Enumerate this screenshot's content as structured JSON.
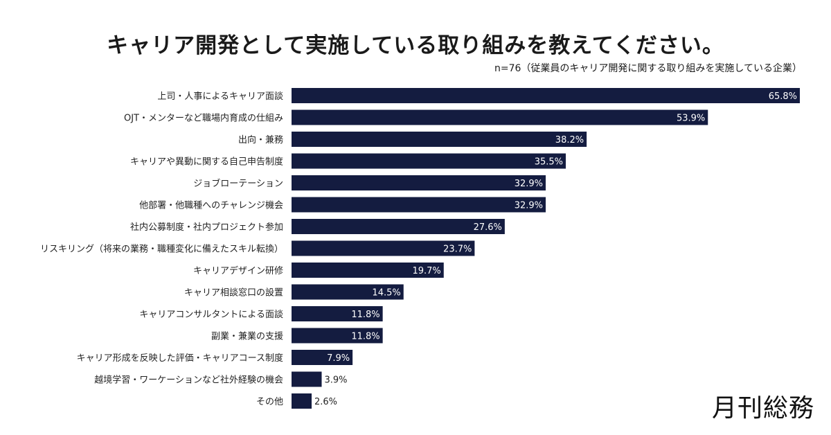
{
  "chart_data": {
    "type": "bar",
    "orientation": "horizontal",
    "title": "キャリア開発として実施している取り組みを教えてください。",
    "subtitle": "n=76（従業員のキャリア開発に関する取り組みを実施している企業）",
    "categories": [
      "上司・人事によるキャリア面談",
      "OJT・メンターなど職場内育成の仕組み",
      "出向・兼務",
      "キャリアや異動に関する自己申告制度",
      "ジョブローテーション",
      "他部署・他職種へのチャレンジ機会",
      "社内公募制度・社内プロジェクト参加",
      "リスキリング（将来の業務・職種変化に備えたスキル転換）",
      "キャリアデザイン研修",
      "キャリア相談窓口の設置",
      "キャリアコンサルタントによる面談",
      "副業・兼業の支援",
      "キャリア形成を反映した評価・キャリアコース制度",
      "越境学習・ワーケーションなど社外経験の機会",
      "その他"
    ],
    "values": [
      65.8,
      53.9,
      38.2,
      35.5,
      32.9,
      32.9,
      27.6,
      23.7,
      19.7,
      14.5,
      11.8,
      11.8,
      7.9,
      3.9,
      2.6
    ],
    "value_labels": [
      "65.8%",
      "53.9%",
      "38.2%",
      "35.5%",
      "32.9%",
      "32.9%",
      "27.6%",
      "23.7%",
      "19.7%",
      "14.5%",
      "11.8%",
      "11.8%",
      "7.9%",
      "3.9%",
      "2.6%"
    ],
    "unit": "%",
    "grid": false,
    "legend": "none",
    "bar_color": "#141c40"
  },
  "logo": "月刊総務"
}
